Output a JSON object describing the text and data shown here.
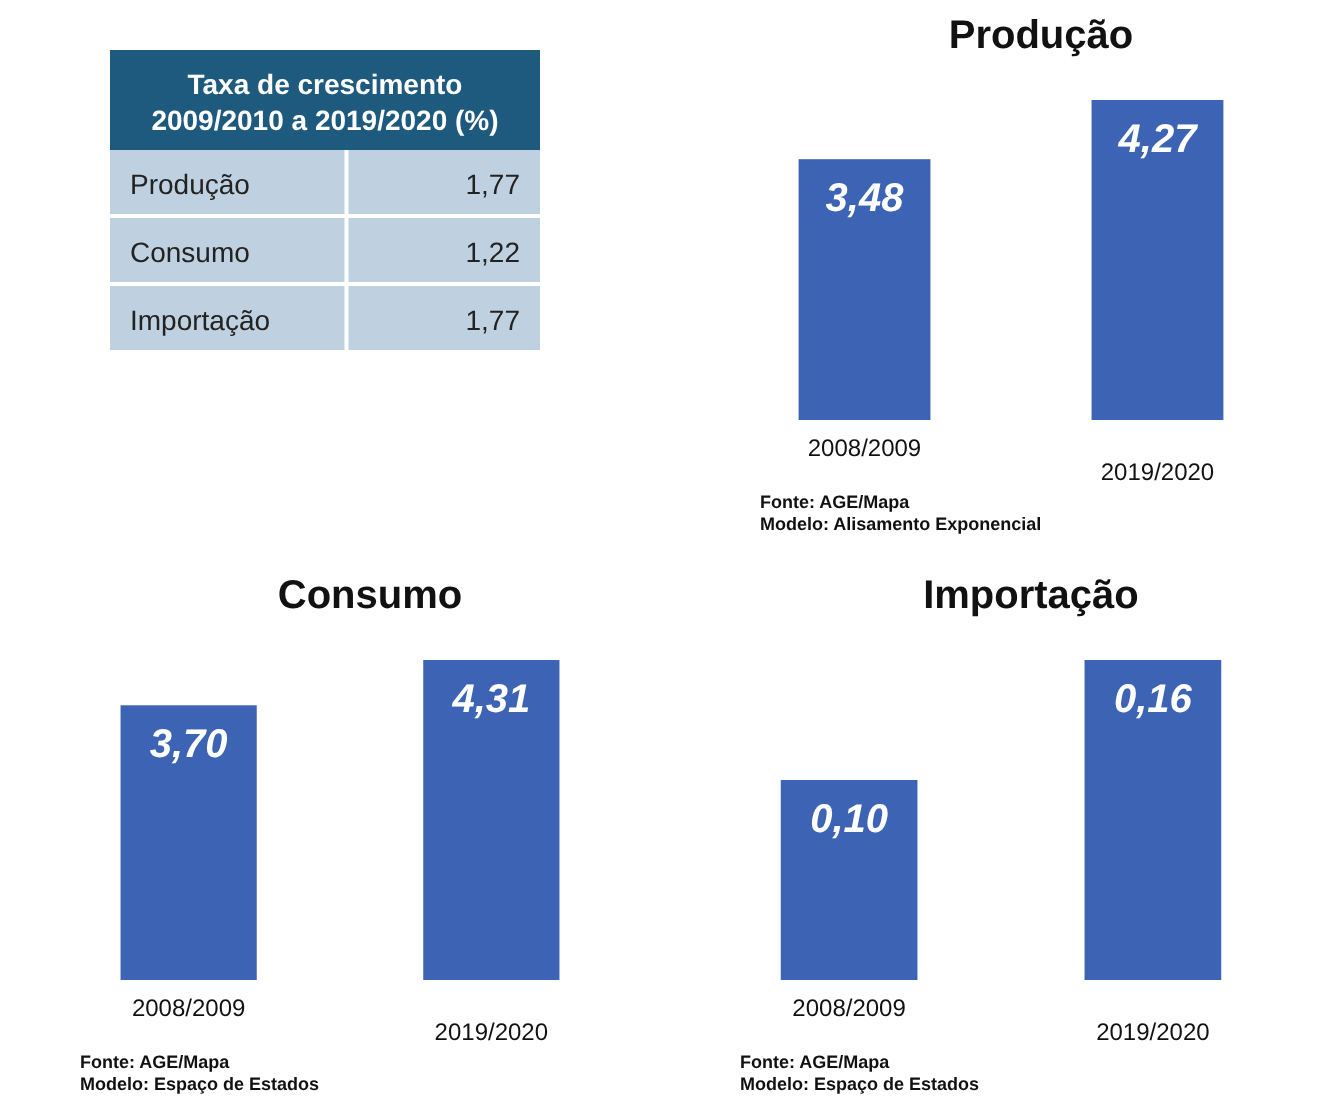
{
  "chart_data": [
    {
      "type": "other",
      "title": "Taxa de crescimento 2009/2010 a 2019/2020 (%)",
      "categories": [
        "Produção",
        "Consumo",
        "Importação"
      ],
      "values": [
        1.77,
        1.22,
        1.77
      ],
      "value_labels": [
        "1,77",
        "1,22",
        "1,77"
      ]
    },
    {
      "type": "bar",
      "title": "Produção",
      "categories": [
        "2008/2009",
        "2019/2020"
      ],
      "values": [
        3.48,
        4.27
      ],
      "value_labels": [
        "3,48",
        "4,27"
      ],
      "color": "#3d64b4",
      "annotations": [
        "Fonte: AGE/Mapa",
        "Modelo: Alisamento Exponencial"
      ]
    },
    {
      "type": "bar",
      "title": "Consumo",
      "categories": [
        "2008/2009",
        "2019/2020"
      ],
      "values": [
        3.7,
        4.31
      ],
      "value_labels": [
        "3,70",
        "4,31"
      ],
      "color": "#3d64b4",
      "annotations": [
        "Fonte: AGE/Mapa",
        "Modelo: Espaço de Estados"
      ]
    },
    {
      "type": "bar",
      "title": "Importação",
      "categories": [
        "2008/2009",
        "2019/2020"
      ],
      "values": [
        0.1,
        0.16
      ],
      "value_labels": [
        "0,10",
        "0,16"
      ],
      "color": "#3d64b4",
      "annotations": [
        "Fonte: AGE/Mapa",
        "Modelo: Espaço de Estados"
      ]
    }
  ]
}
